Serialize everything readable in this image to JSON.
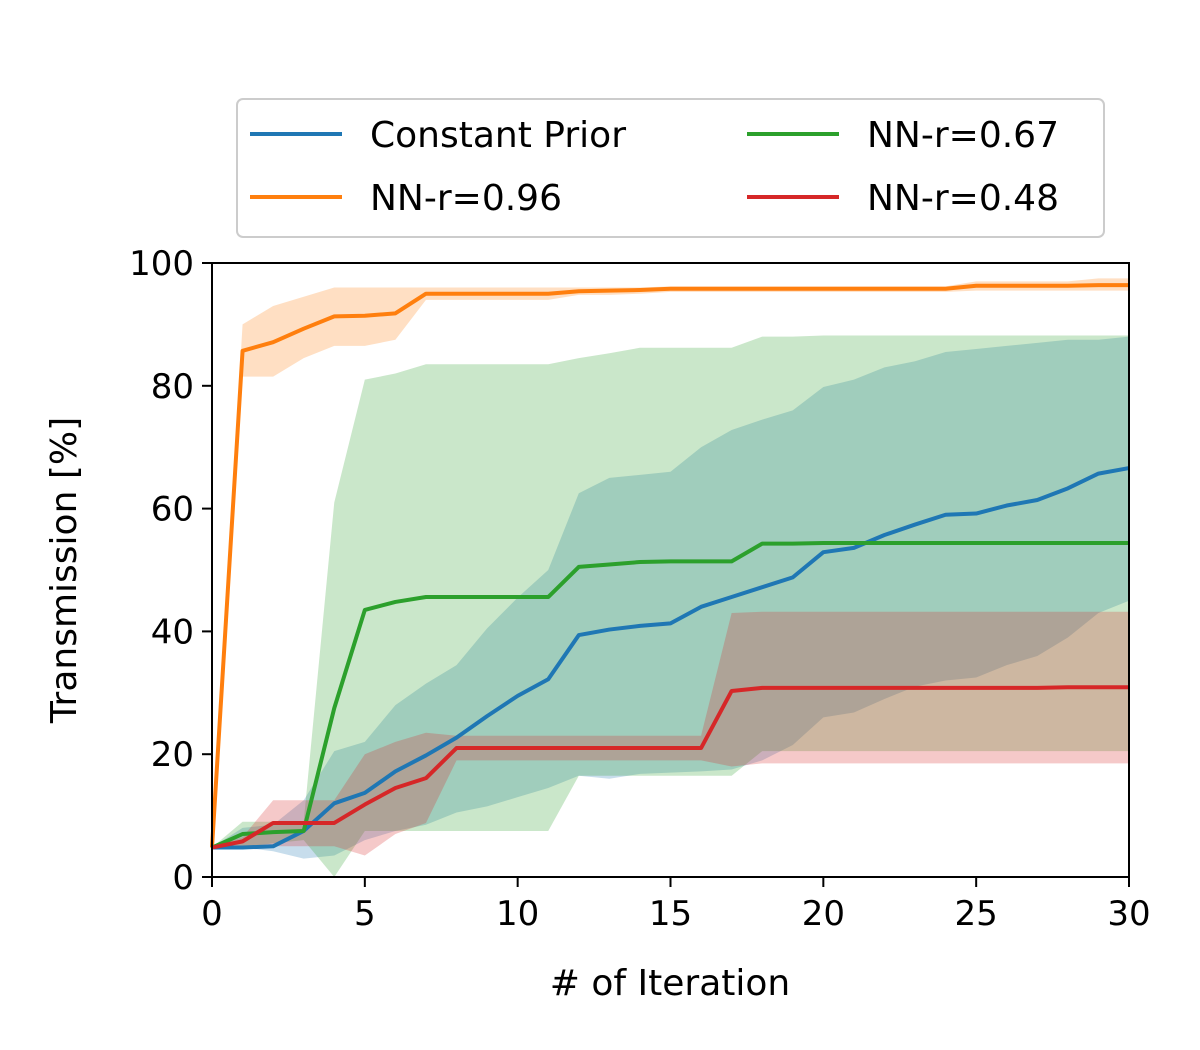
{
  "chart_data": {
    "type": "line",
    "xlabel": "# of Iteration",
    "ylabel": "Transmission [%]",
    "xlim": [
      0,
      30
    ],
    "ylim": [
      0,
      100
    ],
    "xticks": [
      0,
      5,
      10,
      15,
      20,
      25,
      30
    ],
    "yticks": [
      0,
      20,
      40,
      60,
      80,
      100
    ],
    "grid": false,
    "legend": {
      "placement": "above plot, 2 columns",
      "columns": 2
    },
    "x": [
      0,
      1,
      2,
      3,
      4,
      5,
      6,
      7,
      8,
      9,
      10,
      11,
      12,
      13,
      14,
      15,
      16,
      17,
      18,
      19,
      20,
      21,
      22,
      23,
      24,
      25,
      26,
      27,
      28,
      29,
      30
    ],
    "series": [
      {
        "name": "Constant Prior",
        "color": "#1f77b4",
        "values": [
          4.8,
          4.8,
          5.0,
          7.5,
          12.0,
          13.7,
          17.2,
          19.8,
          22.7,
          26.2,
          29.5,
          32.2,
          39.4,
          40.3,
          40.9,
          41.3,
          44.0,
          45.6,
          47.2,
          48.8,
          52.9,
          53.6,
          55.7,
          57.4,
          59.0,
          59.2,
          60.5,
          61.4,
          63.3,
          65.7,
          66.6
        ],
        "band_upper": [
          4.8,
          8.0,
          8.5,
          12.5,
          20.5,
          22.0,
          28.0,
          31.5,
          34.5,
          40.5,
          45.5,
          50.0,
          62.5,
          65.0,
          65.5,
          66.0,
          70.0,
          72.8,
          74.5,
          76.0,
          79.8,
          81.0,
          83.0,
          84.0,
          85.5,
          86.0,
          86.5,
          87.0,
          87.5,
          87.5,
          88.0
        ],
        "band_lower": [
          4.8,
          4.8,
          4.2,
          3.0,
          3.5,
          6.0,
          7.5,
          8.5,
          10.5,
          11.5,
          13.0,
          14.5,
          16.5,
          16.0,
          16.8,
          17.0,
          17.2,
          17.5,
          19.0,
          21.5,
          26.0,
          26.8,
          29.0,
          31.0,
          32.0,
          32.5,
          34.5,
          36.0,
          39.0,
          43.0,
          45.0
        ]
      },
      {
        "name": "NN-r=0.96",
        "color": "#ff7f0e",
        "values": [
          4.8,
          85.7,
          87.1,
          89.3,
          91.3,
          91.4,
          91.8,
          95.0,
          95.0,
          95.0,
          95.0,
          95.0,
          95.4,
          95.5,
          95.6,
          95.8,
          95.8,
          95.8,
          95.8,
          95.8,
          95.8,
          95.8,
          95.8,
          95.8,
          95.8,
          96.3,
          96.3,
          96.3,
          96.3,
          96.4,
          96.4
        ],
        "band_upper": [
          4.8,
          90.0,
          93.0,
          94.5,
          96.0,
          96.0,
          96.0,
          96.0,
          96.0,
          96.0,
          96.0,
          96.0,
          96.0,
          96.0,
          96.0,
          96.2,
          96.2,
          96.2,
          96.2,
          96.2,
          96.2,
          96.2,
          96.2,
          96.2,
          96.2,
          97.0,
          97.0,
          97.0,
          97.0,
          97.5,
          97.5
        ],
        "band_lower": [
          4.8,
          81.5,
          81.5,
          84.5,
          86.5,
          86.5,
          87.5,
          94.0,
          94.0,
          94.0,
          94.0,
          94.0,
          94.8,
          94.8,
          95.0,
          95.3,
          95.3,
          95.3,
          95.3,
          95.3,
          95.3,
          95.3,
          95.3,
          95.3,
          95.3,
          95.5,
          95.5,
          95.5,
          95.5,
          95.5,
          95.5
        ]
      },
      {
        "name": "NN-r=0.67",
        "color": "#2ca02c",
        "values": [
          4.8,
          7.0,
          7.3,
          7.5,
          27.5,
          43.5,
          44.8,
          45.6,
          45.6,
          45.6,
          45.6,
          45.6,
          50.5,
          50.9,
          51.3,
          51.4,
          51.4,
          51.4,
          54.3,
          54.3,
          54.4,
          54.4,
          54.4,
          54.4,
          54.4,
          54.4,
          54.4,
          54.4,
          54.4,
          54.4,
          54.4
        ],
        "band_upper": [
          4.8,
          9.0,
          9.0,
          9.0,
          61.0,
          81.0,
          82.0,
          83.5,
          83.5,
          83.5,
          83.5,
          83.5,
          84.5,
          85.3,
          86.2,
          86.2,
          86.2,
          86.2,
          88.0,
          88.0,
          88.2,
          88.2,
          88.2,
          88.2,
          88.2,
          88.2,
          88.2,
          88.2,
          88.2,
          88.2,
          88.2
        ],
        "band_lower": [
          4.8,
          4.8,
          5.5,
          6.0,
          0.0,
          7.5,
          7.5,
          7.5,
          7.5,
          7.5,
          7.5,
          7.5,
          16.5,
          16.5,
          16.5,
          16.5,
          16.5,
          16.5,
          20.5,
          20.5,
          20.5,
          20.5,
          20.5,
          20.5,
          20.5,
          20.5,
          20.5,
          20.5,
          20.5,
          20.5,
          20.5
        ]
      },
      {
        "name": "NN-r=0.48",
        "color": "#d62728",
        "values": [
          4.8,
          5.8,
          8.8,
          8.8,
          8.8,
          11.8,
          14.5,
          16.1,
          21.0,
          21.0,
          21.0,
          21.0,
          21.0,
          21.0,
          21.0,
          21.0,
          21.0,
          30.3,
          30.8,
          30.8,
          30.8,
          30.8,
          30.8,
          30.8,
          30.8,
          30.8,
          30.8,
          30.8,
          30.9,
          30.9,
          30.9
        ],
        "band_upper": [
          4.8,
          6.5,
          12.5,
          12.5,
          12.5,
          20.0,
          22.0,
          23.5,
          23.0,
          23.0,
          23.0,
          23.0,
          23.0,
          23.0,
          23.0,
          23.0,
          23.0,
          43.0,
          43.2,
          43.2,
          43.2,
          43.2,
          43.2,
          43.2,
          43.2,
          43.2,
          43.2,
          43.2,
          43.2,
          43.2,
          43.2
        ],
        "band_lower": [
          4.8,
          5.0,
          5.0,
          5.0,
          5.0,
          3.5,
          7.0,
          8.8,
          19.0,
          19.0,
          19.0,
          19.0,
          19.0,
          19.0,
          19.0,
          19.0,
          19.0,
          18.0,
          18.5,
          18.5,
          18.5,
          18.5,
          18.5,
          18.5,
          18.5,
          18.5,
          18.5,
          18.5,
          18.5,
          18.5,
          18.5
        ]
      }
    ]
  }
}
